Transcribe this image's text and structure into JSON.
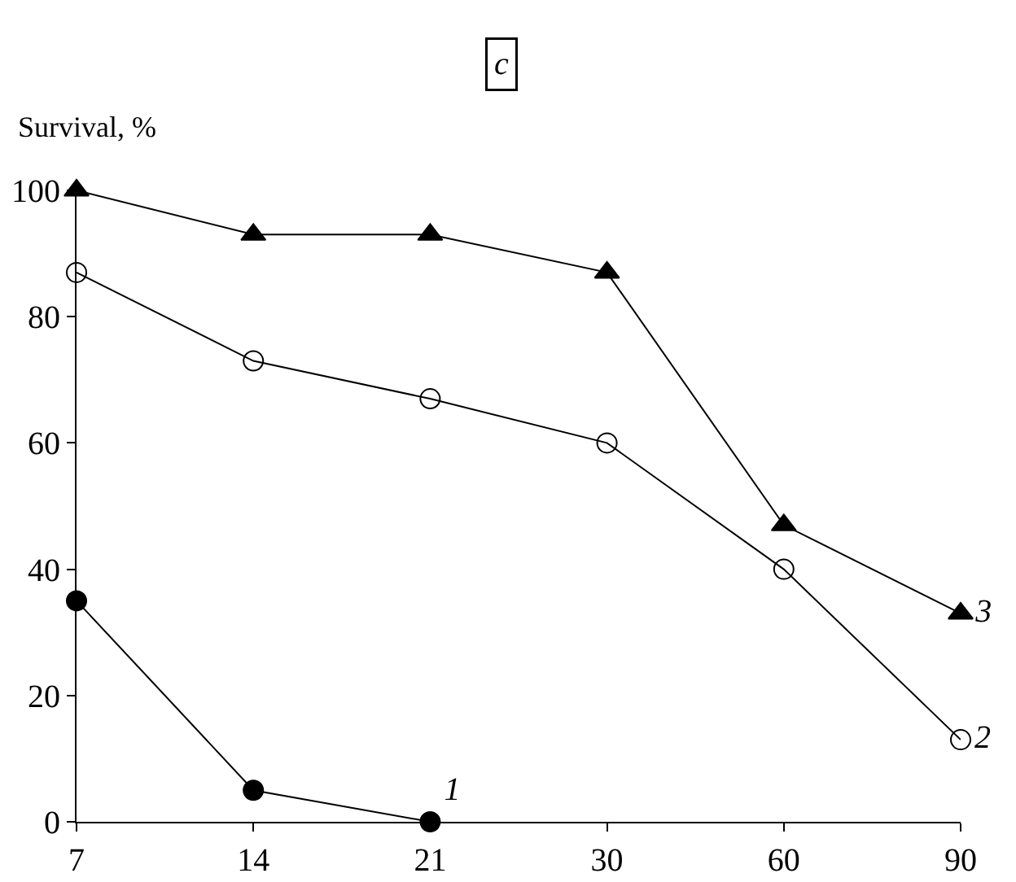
{
  "chart_data": {
    "type": "line",
    "title": "c",
    "ylabel": "Survival, %",
    "categories": [
      "7",
      "14",
      "21",
      "30",
      "60",
      "90"
    ],
    "ylim": [
      0,
      100
    ],
    "yticks": [
      0,
      20,
      40,
      60,
      80,
      100
    ],
    "grid": false,
    "legend": false,
    "series": [
      {
        "name": "1",
        "color": "#000000",
        "marker": "circle",
        "values": [
          35,
          5,
          0,
          null,
          null,
          null
        ]
      },
      {
        "name": "2",
        "color": "#000000",
        "marker": "circle-open",
        "values": [
          87,
          73,
          67,
          60,
          40,
          13
        ]
      },
      {
        "name": "3",
        "color": "#000000",
        "marker": "triangle",
        "values": [
          100,
          93,
          93,
          87,
          47,
          33
        ]
      }
    ]
  }
}
